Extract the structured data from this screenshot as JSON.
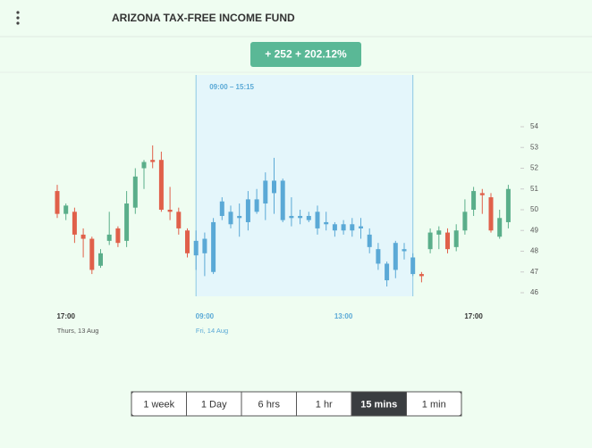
{
  "header": {
    "title": "ARIZONA TAX-FREE INCOME FUND"
  },
  "badge": {
    "text": "+ 252 + 202.12%"
  },
  "chart_data": {
    "type": "candlestick",
    "selection_label": "09:00 – 15:15",
    "categories": [
      null,
      "17:00",
      null,
      null,
      null,
      null,
      null,
      null,
      null,
      null,
      null,
      null,
      null,
      null,
      null,
      null,
      null,
      "09:00",
      null,
      null,
      null,
      null,
      null,
      null,
      null,
      null,
      null,
      null,
      null,
      null,
      null,
      null,
      null,
      "13:00",
      null,
      null,
      null,
      null,
      null,
      null,
      null,
      null,
      null,
      null,
      null,
      null,
      null,
      null,
      "17:00",
      null,
      null,
      null,
      null
    ],
    "dates": [
      null,
      "Thurs, 13 Aug",
      null,
      null,
      null,
      null,
      null,
      null,
      null,
      null,
      null,
      null,
      null,
      null,
      null,
      null,
      null,
      "Fri, 14 Aug",
      null,
      null,
      null,
      null,
      null,
      null,
      null,
      null,
      null,
      null,
      null,
      null,
      null,
      null,
      null,
      null,
      null,
      null,
      null,
      null,
      null,
      null,
      null,
      null,
      null,
      null,
      null,
      null,
      null,
      null,
      null,
      null,
      null,
      null,
      null
    ],
    "open": [
      50.9,
      49.8,
      49.9,
      48.8,
      48.6,
      47.3,
      48.5,
      49.1,
      48.5,
      50.1,
      52.0,
      52.4,
      52.4,
      50.0,
      49.9,
      49.0,
      47.8,
      47.9,
      47.0,
      49.7,
      49.3,
      49.7,
      49.4,
      50.5,
      50.3,
      51.4,
      51.4,
      49.7,
      49.7,
      49.7,
      49.9,
      49.4,
      49.3,
      49.0,
      49.3,
      49.2,
      48.8,
      48.1,
      47.4,
      47.1,
      48.1,
      47.7,
      46.9,
      48.1,
      48.8,
      48.9,
      48.2,
      49.0,
      50.0,
      50.8,
      50.6,
      48.7,
      49.4
    ],
    "high": [
      51.2,
      50.3,
      50.1,
      49.1,
      48.7,
      48.1,
      49.9,
      49.2,
      50.9,
      52.0,
      52.4,
      53.1,
      52.8,
      51.1,
      50.1,
      49.1,
      49.0,
      48.9,
      49.6,
      50.6,
      50.2,
      50.3,
      50.9,
      51.0,
      51.8,
      52.5,
      51.5,
      50.6,
      50.0,
      49.9,
      50.2,
      49.9,
      49.4,
      49.5,
      49.6,
      49.6,
      49.1,
      48.4,
      47.5,
      48.5,
      48.4,
      47.9,
      47.0,
      49.1,
      49.2,
      49.1,
      49.3,
      50.5,
      51.1,
      51.0,
      50.8,
      50.0,
      51.2
    ],
    "low": [
      49.6,
      49.5,
      48.4,
      47.7,
      46.9,
      47.2,
      48.3,
      48.2,
      48.2,
      49.8,
      51.0,
      52.0,
      49.9,
      49.5,
      48.8,
      47.7,
      47.1,
      46.8,
      46.9,
      49.5,
      49.1,
      48.7,
      49.0,
      49.8,
      49.5,
      49.8,
      49.4,
      49.2,
      49.3,
      49.4,
      48.8,
      49.0,
      48.7,
      48.8,
      48.7,
      48.6,
      47.9,
      47.1,
      46.3,
      46.7,
      47.6,
      46.8,
      46.5,
      47.9,
      48.1,
      47.9,
      48.0,
      48.8,
      49.7,
      49.8,
      48.9,
      48.6,
      49.1
    ],
    "close": [
      49.8,
      50.2,
      48.8,
      48.6,
      47.1,
      47.9,
      48.8,
      48.4,
      50.3,
      51.6,
      52.3,
      52.3,
      50.0,
      49.9,
      49.1,
      47.9,
      48.5,
      48.6,
      49.4,
      50.4,
      49.9,
      49.6,
      50.5,
      49.9,
      51.4,
      50.8,
      49.5,
      49.6,
      49.6,
      49.5,
      49.1,
      49.3,
      49.0,
      49.3,
      49.0,
      49.1,
      48.2,
      47.4,
      46.6,
      48.4,
      48.0,
      46.9,
      46.8,
      48.9,
      49.0,
      48.1,
      49.0,
      49.9,
      50.9,
      50.7,
      49.0,
      49.6,
      51.0
    ],
    "up_color": "#5aae8a",
    "down_color": "#e0604a",
    "selected_color": "#5aa9d6",
    "ylim": [
      46,
      54
    ],
    "yticks": [
      46,
      47,
      48,
      49,
      50,
      51,
      52,
      53,
      54
    ]
  },
  "tabs": {
    "items": [
      "1 week",
      "1 Day",
      "6 hrs",
      "1 hr",
      "15 mins",
      "1 min"
    ],
    "active": "15 mins"
  }
}
